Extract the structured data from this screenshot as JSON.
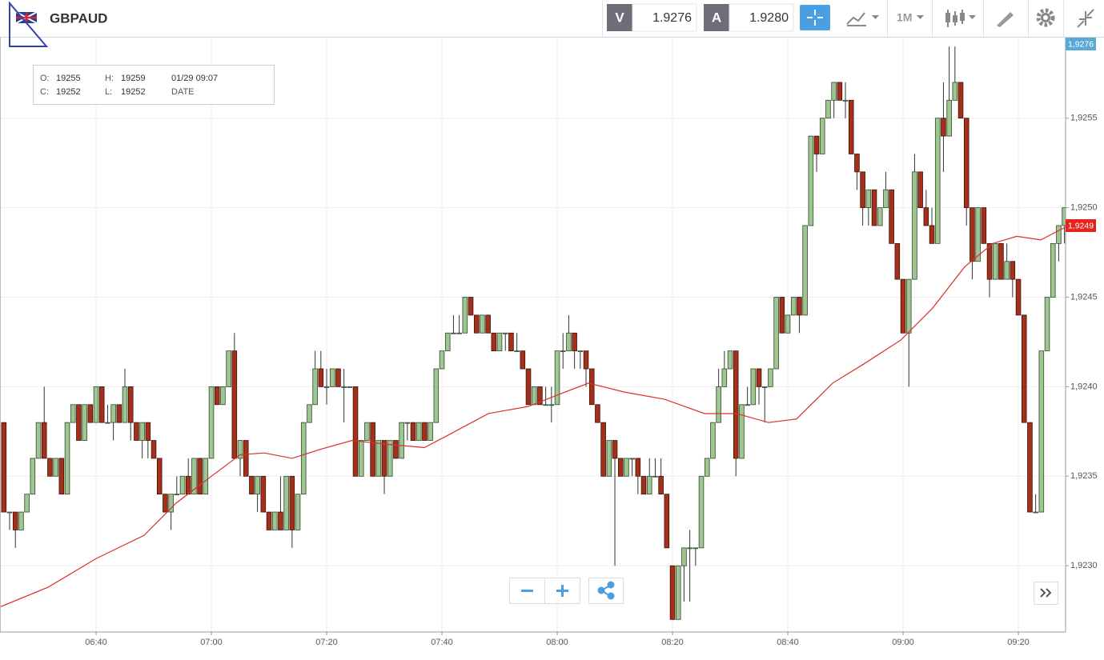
{
  "toolbar": {
    "symbol": "GBPAUD",
    "bid_letter": "V",
    "bid": "1.9276",
    "ask_letter": "A",
    "ask": "1.9280",
    "interval": "1M"
  },
  "info_box": {
    "o_label": "O:",
    "o": "19255",
    "h_label": "H:",
    "h": "19259",
    "date": "01/29 09:07",
    "c_label": "C:",
    "c": "19252",
    "l_label": "L:",
    "l": "19252",
    "date_label": "DATE"
  },
  "bid_badge": "1,9276",
  "chart_data": {
    "type": "candlestick",
    "up_color": "#9ec592",
    "down_color": "#a4301c",
    "x": [
      384,
      385,
      386,
      387,
      388,
      389,
      390,
      391,
      392,
      393,
      394,
      395,
      396,
      397,
      398,
      399,
      400,
      401,
      402,
      403,
      404,
      405,
      406,
      407,
      408,
      409,
      410,
      411,
      412,
      413,
      414,
      415,
      416,
      417,
      418,
      419,
      420,
      421,
      422,
      423,
      424,
      425,
      426,
      427,
      428,
      429,
      430,
      431,
      432,
      433,
      434,
      435,
      436,
      437,
      438,
      439,
      440,
      441,
      442,
      443,
      444,
      445,
      446,
      447,
      448,
      449,
      450,
      451,
      452,
      453,
      454,
      455,
      456,
      457,
      458,
      459,
      460,
      461,
      462,
      463,
      464,
      465,
      466,
      467,
      468,
      469,
      470,
      471,
      472,
      473,
      474,
      475,
      476,
      477,
      478,
      479,
      480,
      481,
      482,
      483,
      484,
      485,
      486,
      487,
      488,
      489,
      490,
      491,
      492,
      493,
      494,
      495,
      496,
      497,
      498,
      499,
      500,
      501,
      502,
      503,
      504,
      505,
      506,
      507,
      508,
      509,
      510,
      511,
      512,
      513,
      514,
      515,
      516,
      517,
      518,
      519,
      520,
      521,
      522,
      523,
      524,
      525,
      526,
      527,
      528,
      529,
      530,
      531,
      532,
      533,
      534,
      535,
      536,
      537,
      538,
      539,
      540,
      541,
      542,
      543,
      544,
      545,
      546,
      547,
      548,
      549,
      550,
      551,
      552,
      553,
      554,
      555,
      556,
      557,
      558,
      559,
      560,
      561,
      562,
      563,
      564,
      565,
      566,
      567,
      568
    ],
    "open": [
      1.9238,
      1.9233,
      1.9233,
      1.9232,
      1.9233,
      1.9234,
      1.9236,
      1.9238,
      1.9236,
      1.9235,
      1.9236,
      1.9234,
      1.9238,
      1.9239,
      1.9237,
      1.9239,
      1.9238,
      1.924,
      1.9238,
      1.9238,
      1.9239,
      1.9238,
      1.924,
      1.9238,
      1.9237,
      1.9238,
      1.9237,
      1.9236,
      1.9234,
      1.9233,
      1.9234,
      1.9234,
      1.9235,
      1.9234,
      1.9236,
      1.9234,
      1.9236,
      1.924,
      1.9239,
      1.924,
      1.9242,
      1.9236,
      1.9237,
      1.9235,
      1.9234,
      1.9235,
      1.9233,
      1.9232,
      1.9233,
      1.9232,
      1.9235,
      1.9232,
      1.9234,
      1.9238,
      1.9239,
      1.9241,
      1.924,
      1.924,
      1.9241,
      1.924,
      1.924,
      1.924,
      1.9235,
      1.9237,
      1.9238,
      1.9235,
      1.9237,
      1.9235,
      1.9237,
      1.9236,
      1.9238,
      1.9238,
      1.9237,
      1.9238,
      1.9237,
      1.9238,
      1.9241,
      1.9242,
      1.9243,
      1.9243,
      1.9243,
      1.9245,
      1.9244,
      1.9243,
      1.9244,
      1.9243,
      1.9242,
      1.9243,
      1.9243,
      1.9242,
      1.9242,
      1.9241,
      1.9239,
      1.924,
      1.9239,
      1.9239,
      1.9239,
      1.9242,
      1.9242,
      1.9243,
      1.9242,
      1.9242,
      1.9241,
      1.9239,
      1.9238,
      1.9235,
      1.9237,
      1.9236,
      1.9235,
      1.9236,
      1.9236,
      1.9235,
      1.9234,
      1.9235,
      1.9235,
      1.9234,
      1.923,
      1.9227,
      1.923,
      1.9231,
      1.9231,
      1.9231,
      1.9235,
      1.9236,
      1.9238,
      1.924,
      1.9241,
      1.9242,
      1.9236,
      1.9239,
      1.9239,
      1.9241,
      1.924,
      1.924,
      1.9241,
      1.9245,
      1.9243,
      1.9244,
      1.9245,
      1.9244,
      1.9249,
      1.9254,
      1.9253,
      1.9255,
      1.9256,
      1.9257,
      1.9256,
      1.9256,
      1.9253,
      1.9252,
      1.925,
      1.9251,
      1.9249,
      1.925,
      1.9251,
      1.9248,
      1.9246,
      1.9243,
      1.9246,
      1.9252,
      1.925,
      1.9249,
      1.9248,
      1.9255,
      1.9254,
      1.9256,
      1.9257,
      1.9255,
      1.925,
      1.9247,
      1.925,
      1.9248,
      1.9246,
      1.9248,
      1.9246,
      1.9247,
      1.9246,
      1.9244,
      1.9238,
      1.9233,
      1.9233,
      1.9242,
      1.9245,
      1.9248,
      1.9249
    ],
    "high": [
      1.9238,
      1.9233,
      1.9233,
      1.9233,
      1.9234,
      1.9236,
      1.9238,
      1.924,
      1.9236,
      1.9236,
      1.9236,
      1.9238,
      1.9239,
      1.9239,
      1.9239,
      1.9239,
      1.924,
      1.924,
      1.9239,
      1.9239,
      1.9239,
      1.9241,
      1.924,
      1.9238,
      1.9238,
      1.9238,
      1.9237,
      1.9236,
      1.9234,
      1.9234,
      1.9235,
      1.9235,
      1.9236,
      1.9236,
      1.9236,
      1.9236,
      1.924,
      1.924,
      1.924,
      1.9242,
      1.9243,
      1.9237,
      1.9237,
      1.9235,
      1.9235,
      1.9235,
      1.9233,
      1.9233,
      1.9235,
      1.9235,
      1.9235,
      1.9234,
      1.9238,
      1.9239,
      1.9242,
      1.9242,
      1.9241,
      1.9241,
      1.9241,
      1.9241,
      1.924,
      1.924,
      1.9237,
      1.9238,
      1.9238,
      1.9237,
      1.9237,
      1.9237,
      1.9237,
      1.9238,
      1.9238,
      1.9238,
      1.9238,
      1.9238,
      1.9238,
      1.9241,
      1.9242,
      1.9243,
      1.9244,
      1.9244,
      1.9245,
      1.9245,
      1.9244,
      1.9244,
      1.9244,
      1.9243,
      1.9243,
      1.9243,
      1.9243,
      1.9243,
      1.9242,
      1.9241,
      1.924,
      1.924,
      1.924,
      1.924,
      1.9242,
      1.9243,
      1.9244,
      1.9243,
      1.9242,
      1.9242,
      1.9241,
      1.9239,
      1.9238,
      1.9237,
      1.9237,
      1.9236,
      1.9236,
      1.9236,
      1.9236,
      1.9235,
      1.9236,
      1.9236,
      1.9236,
      1.9234,
      1.923,
      1.923,
      1.9231,
      1.9232,
      1.9231,
      1.9235,
      1.9236,
      1.9238,
      1.9241,
      1.9242,
      1.9242,
      1.9242,
      1.9239,
      1.924,
      1.9241,
      1.9241,
      1.924,
      1.9241,
      1.9245,
      1.9245,
      1.9244,
      1.9245,
      1.9245,
      1.9249,
      1.9254,
      1.9254,
      1.9255,
      1.9256,
      1.9257,
      1.9257,
      1.9257,
      1.9256,
      1.9253,
      1.9252,
      1.9251,
      1.9251,
      1.925,
      1.9252,
      1.9251,
      1.9248,
      1.9246,
      1.9246,
      1.9253,
      1.9252,
      1.9251,
      1.925,
      1.9255,
      1.9257,
      1.9259,
      1.9259,
      1.9257,
      1.9255,
      1.925,
      1.925,
      1.925,
      1.9248,
      1.9248,
      1.9248,
      1.9248,
      1.9247,
      1.9246,
      1.9244,
      1.9238,
      1.9234,
      1.9242,
      1.9245,
      1.9248,
      1.9249,
      1.925
    ],
    "low": [
      1.9233,
      1.9232,
      1.9231,
      1.9232,
      1.9233,
      1.9234,
      1.9236,
      1.9236,
      1.9235,
      1.9235,
      1.9234,
      1.9234,
      1.9238,
      1.9237,
      1.9237,
      1.9238,
      1.9238,
      1.9238,
      1.9238,
      1.9237,
      1.9238,
      1.9238,
      1.9237,
      1.9237,
      1.9236,
      1.9236,
      1.9236,
      1.9234,
      1.9233,
      1.9232,
      1.9234,
      1.9234,
      1.9234,
      1.9234,
      1.9234,
      1.9234,
      1.9236,
      1.9239,
      1.9239,
      1.924,
      1.9236,
      1.9235,
      1.9235,
      1.9234,
      1.9233,
      1.9233,
      1.9232,
      1.9232,
      1.9232,
      1.9232,
      1.9231,
      1.9232,
      1.9234,
      1.9238,
      1.9239,
      1.924,
      1.9239,
      1.924,
      1.924,
      1.9238,
      1.924,
      1.9235,
      1.9235,
      1.9237,
      1.9235,
      1.9235,
      1.9234,
      1.9235,
      1.9236,
      1.9236,
      1.9237,
      1.9237,
      1.9237,
      1.9237,
      1.9237,
      1.9238,
      1.9241,
      1.9242,
      1.9243,
      1.9243,
      1.9243,
      1.9244,
      1.9243,
      1.9243,
      1.9243,
      1.9242,
      1.9242,
      1.9242,
      1.9242,
      1.9242,
      1.9241,
      1.9239,
      1.9239,
      1.9239,
      1.9239,
      1.9238,
      1.9239,
      1.9241,
      1.9242,
      1.9241,
      1.9241,
      1.924,
      1.9239,
      1.9238,
      1.9235,
      1.9235,
      1.923,
      1.9235,
      1.9235,
      1.9235,
      1.9234,
      1.9234,
      1.9234,
      1.9235,
      1.9234,
      1.9231,
      1.9227,
      1.9227,
      1.9228,
      1.9228,
      1.923,
      1.9231,
      1.9235,
      1.9236,
      1.9238,
      1.924,
      1.9241,
      1.9235,
      1.9236,
      1.9239,
      1.9239,
      1.9239,
      1.9238,
      1.924,
      1.9241,
      1.9243,
      1.9243,
      1.9244,
      1.9243,
      1.9244,
      1.9249,
      1.9252,
      1.9253,
      1.9255,
      1.9255,
      1.9256,
      1.9255,
      1.9253,
      1.9251,
      1.9249,
      1.9249,
      1.9249,
      1.9249,
      1.925,
      1.9248,
      1.9246,
      1.9243,
      1.924,
      1.9246,
      1.925,
      1.9249,
      1.9248,
      1.9248,
      1.9252,
      1.9254,
      1.9256,
      1.9255,
      1.9249,
      1.9246,
      1.9247,
      1.9248,
      1.9245,
      1.9246,
      1.9246,
      1.9246,
      1.9245,
      1.9244,
      1.9238,
      1.9233,
      1.9233,
      1.9233,
      1.9242,
      1.9245,
      1.9247,
      1.9248
    ],
    "close": [
      1.9233,
      1.9233,
      1.9232,
      1.9233,
      1.9234,
      1.9236,
      1.9238,
      1.9236,
      1.9235,
      1.9236,
      1.9234,
      1.9238,
      1.9239,
      1.9237,
      1.9239,
      1.9238,
      1.924,
      1.9238,
      1.9238,
      1.9239,
      1.9238,
      1.924,
      1.9238,
      1.9237,
      1.9238,
      1.9237,
      1.9236,
      1.9234,
      1.9233,
      1.9234,
      1.9234,
      1.9235,
      1.9234,
      1.9236,
      1.9234,
      1.9236,
      1.924,
      1.9239,
      1.924,
      1.9242,
      1.9236,
      1.9237,
      1.9235,
      1.9234,
      1.9235,
      1.9233,
      1.9232,
      1.9233,
      1.9232,
      1.9235,
      1.9232,
      1.9234,
      1.9238,
      1.9239,
      1.9241,
      1.924,
      1.924,
      1.9241,
      1.924,
      1.924,
      1.924,
      1.9235,
      1.9237,
      1.9238,
      1.9235,
      1.9237,
      1.9235,
      1.9237,
      1.9236,
      1.9238,
      1.9238,
      1.9237,
      1.9238,
      1.9237,
      1.9238,
      1.9241,
      1.9242,
      1.9243,
      1.9243,
      1.9243,
      1.9245,
      1.9244,
      1.9243,
      1.9244,
      1.9243,
      1.9242,
      1.9243,
      1.9243,
      1.9242,
      1.9242,
      1.9241,
      1.9239,
      1.924,
      1.9239,
      1.9239,
      1.9239,
      1.9242,
      1.9242,
      1.9243,
      1.9242,
      1.9242,
      1.9241,
      1.9239,
      1.9238,
      1.9235,
      1.9237,
      1.9236,
      1.9235,
      1.9236,
      1.9236,
      1.9235,
      1.9234,
      1.9235,
      1.9235,
      1.9234,
      1.9231,
      1.9227,
      1.923,
      1.9231,
      1.9231,
      1.9231,
      1.9235,
      1.9236,
      1.9238,
      1.924,
      1.9241,
      1.9242,
      1.9236,
      1.9239,
      1.9239,
      1.9241,
      1.924,
      1.924,
      1.9241,
      1.9245,
      1.9243,
      1.9244,
      1.9245,
      1.9244,
      1.9249,
      1.9254,
      1.9253,
      1.9255,
      1.9256,
      1.9257,
      1.9256,
      1.9256,
      1.9253,
      1.9252,
      1.925,
      1.9251,
      1.9249,
      1.925,
      1.9251,
      1.9248,
      1.9246,
      1.9243,
      1.9246,
      1.9252,
      1.925,
      1.9249,
      1.9248,
      1.9255,
      1.9254,
      1.9256,
      1.9257,
      1.9255,
      1.925,
      1.9247,
      1.925,
      1.9248,
      1.9246,
      1.9248,
      1.9246,
      1.9247,
      1.9246,
      1.9244,
      1.9238,
      1.9233,
      1.9233,
      1.9242,
      1.9245,
      1.9248,
      1.9249,
      1.925
    ],
    "ma": {
      "color": "#d8302a",
      "x": [
        383.33,
        391.67,
        400,
        408.33,
        413.89,
        420,
        425,
        429.17,
        434.03,
        438.89,
        444.44,
        450,
        456.94,
        461.11,
        468.06,
        475,
        480.56,
        485.42,
        491.67,
        498.61,
        505.56,
        511.11,
        516.67,
        521.53,
        527.78,
        533.33,
        539.58,
        545.14,
        550.69,
        555.56,
        559.72,
        563.89,
        568.06
      ],
      "values": [
        1.92277,
        1.92288,
        1.92304,
        1.92317,
        1.92335,
        1.9235,
        1.92362,
        1.92363,
        1.9236,
        1.92365,
        1.9237,
        1.92368,
        1.92366,
        1.92373,
        1.92385,
        1.92389,
        1.92396,
        1.92402,
        1.92397,
        1.92393,
        1.92385,
        1.92385,
        1.9238,
        1.92382,
        1.92402,
        1.92413,
        1.92426,
        1.92444,
        1.92467,
        1.9248,
        1.92484,
        1.92482,
        1.92489
      ]
    },
    "last_price": {
      "value": 1.9249,
      "label": "1,9249"
    },
    "xlim": [
      383.33,
      568.19
    ],
    "ylim": [
      1.92263,
      1.92595
    ],
    "xticks": [
      {
        "value": 400,
        "label": "06:40"
      },
      {
        "value": 420,
        "label": "07:00"
      },
      {
        "value": 440,
        "label": "07:20"
      },
      {
        "value": 460,
        "label": "07:40"
      },
      {
        "value": 480,
        "label": "08:00"
      },
      {
        "value": 500,
        "label": "08:20"
      },
      {
        "value": 520,
        "label": "08:40"
      },
      {
        "value": 540,
        "label": "09:00"
      },
      {
        "value": 560,
        "label": "09:20"
      }
    ],
    "yticks": [
      {
        "value": 1.923,
        "label": "1,9230"
      },
      {
        "value": 1.9235,
        "label": "1,9235"
      },
      {
        "value": 1.924,
        "label": "1,9240"
      },
      {
        "value": 1.9245,
        "label": "1,9245"
      },
      {
        "value": 1.925,
        "label": "1,9250"
      },
      {
        "value": 1.9255,
        "label": "1,9255"
      }
    ],
    "grid": true
  }
}
